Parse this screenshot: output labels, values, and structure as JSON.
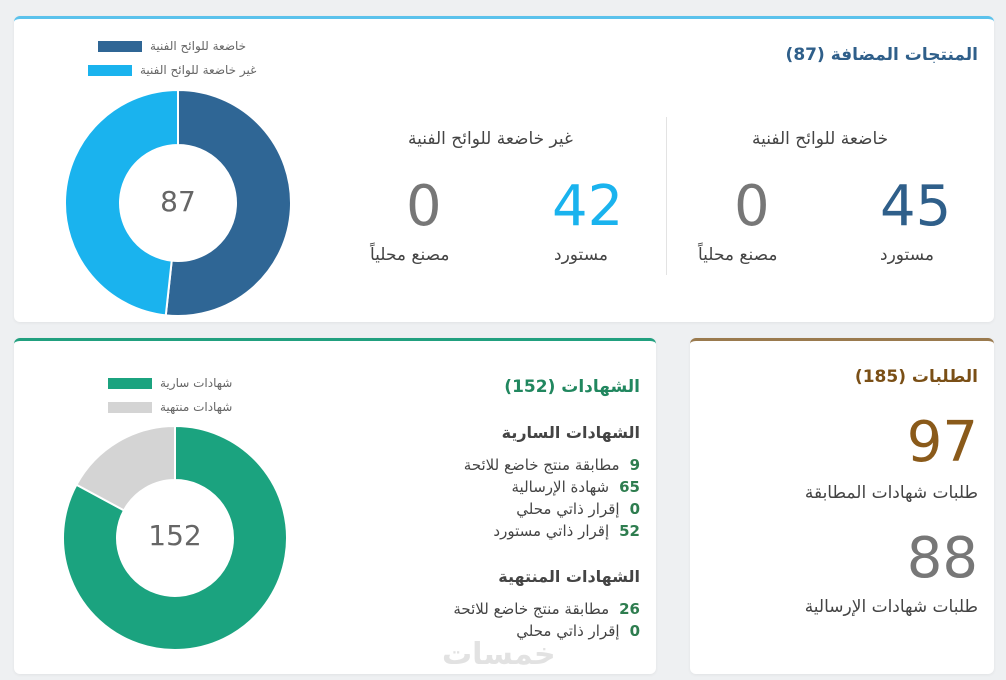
{
  "products": {
    "title": "المنتجات المضافة (87)",
    "total": "87",
    "accent": "#2f6695",
    "subject": {
      "heading": "خاضعة للوائح الفنية",
      "imported_value": "45",
      "imported_label": "مستورد",
      "local_value": "0",
      "local_label": "مصنع محلياً"
    },
    "non_subject": {
      "heading": "غير خاضعة للوائح الفنية",
      "imported_value": "42",
      "imported_label": "مستورد",
      "local_value": "0",
      "local_label": "مصنع محلياً"
    },
    "legend": [
      {
        "label": "خاضعة للوائح الفنية",
        "color": "#2f6695"
      },
      {
        "label": "غير خاضعة للوائح الفنية",
        "color": "#1ab3ee"
      }
    ]
  },
  "certificates": {
    "title": "الشهادات (152)",
    "total": "152",
    "accent": "#21a07f",
    "active_heading": "الشهادات السارية",
    "active_items": [
      {
        "count": "9",
        "label": "مطابقة منتج خاضع للائحة"
      },
      {
        "count": "65",
        "label": "شهادة الإرسالية"
      },
      {
        "count": "0",
        "label": "إقرار ذاتي محلي"
      },
      {
        "count": "52",
        "label": "إقرار ذاتي مستورد"
      }
    ],
    "expired_heading": "الشهادات المنتهية",
    "expired_items": [
      {
        "count": "26",
        "label": "مطابقة منتج خاضع للائحة"
      },
      {
        "count": "0",
        "label": "إقرار ذاتي محلي"
      }
    ],
    "legend": [
      {
        "label": "شهادات سارية",
        "color": "#1ba37f"
      },
      {
        "label": "شهادات منتهية",
        "color": "#d4d4d4"
      }
    ]
  },
  "requests": {
    "title": "الطلبات (185)",
    "accent": "#8a5a1a",
    "conformity_value": "97",
    "conformity_label": "طلبات شهادات المطابقة",
    "shipment_value": "88",
    "shipment_label": "طلبات شهادات الإرسالية"
  },
  "chart_data": [
    {
      "type": "pie",
      "title": "",
      "center_label": "87",
      "categories": [
        "خاضعة للوائح الفنية",
        "غير خاضعة للوائح الفنية"
      ],
      "values": [
        45,
        42
      ],
      "colors": [
        "#2f6695",
        "#1ab3ee"
      ],
      "legend": "top"
    },
    {
      "type": "pie",
      "title": "",
      "center_label": "152",
      "categories": [
        "شهادات سارية",
        "شهادات منتهية"
      ],
      "values": [
        126,
        26
      ],
      "colors": [
        "#1ba37f",
        "#d4d4d4"
      ],
      "legend": "top"
    }
  ],
  "watermark": "خمسات"
}
